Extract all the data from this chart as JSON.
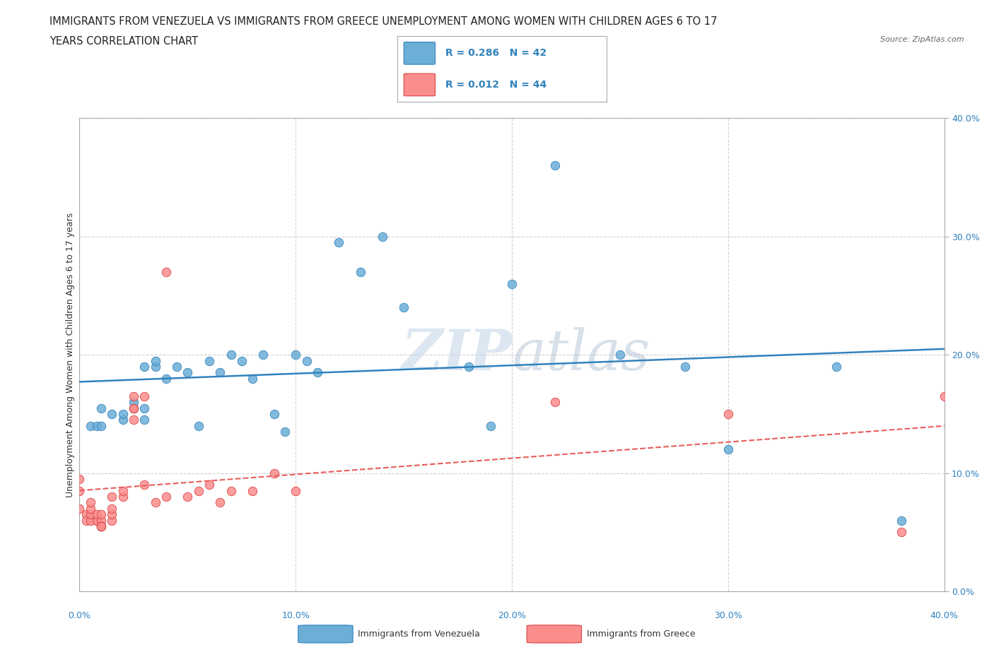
{
  "title_line1": "IMMIGRANTS FROM VENEZUELA VS IMMIGRANTS FROM GREECE UNEMPLOYMENT AMONG WOMEN WITH CHILDREN AGES 6 TO 17",
  "title_line2": "YEARS CORRELATION CHART",
  "source": "Source: ZipAtlas.com",
  "ylabel_label": "Unemployment Among Women with Children Ages 6 to 17 years",
  "watermark_zip": "ZIP",
  "watermark_atlas": "atlas",
  "legend_entry1": "R = 0.286   N = 42",
  "legend_entry2": "R = 0.012   N = 44",
  "legend_label1": "Immigrants from Venezuela",
  "legend_label2": "Immigrants from Greece",
  "color_venezuela": "#6baed6",
  "color_greece": "#fc8d8d",
  "color_trend_venezuela": "#3182bd",
  "color_trend_greece": "#e85c5c",
  "venezuela_x": [
    0.005,
    0.008,
    0.01,
    0.01,
    0.015,
    0.02,
    0.02,
    0.025,
    0.025,
    0.03,
    0.03,
    0.03,
    0.035,
    0.035,
    0.04,
    0.045,
    0.05,
    0.055,
    0.06,
    0.065,
    0.07,
    0.075,
    0.08,
    0.085,
    0.09,
    0.095,
    0.1,
    0.105,
    0.11,
    0.12,
    0.13,
    0.14,
    0.15,
    0.18,
    0.19,
    0.2,
    0.22,
    0.25,
    0.28,
    0.3,
    0.35,
    0.38
  ],
  "venezuela_y": [
    0.14,
    0.14,
    0.14,
    0.155,
    0.15,
    0.145,
    0.15,
    0.155,
    0.16,
    0.145,
    0.155,
    0.19,
    0.19,
    0.195,
    0.18,
    0.19,
    0.185,
    0.14,
    0.195,
    0.185,
    0.2,
    0.195,
    0.18,
    0.2,
    0.15,
    0.135,
    0.2,
    0.195,
    0.185,
    0.295,
    0.27,
    0.3,
    0.24,
    0.19,
    0.14,
    0.26,
    0.36,
    0.2,
    0.19,
    0.12,
    0.19,
    0.06
  ],
  "greece_x": [
    0.0,
    0.0,
    0.0,
    0.003,
    0.003,
    0.005,
    0.005,
    0.005,
    0.005,
    0.008,
    0.008,
    0.008,
    0.01,
    0.01,
    0.01,
    0.01,
    0.01,
    0.015,
    0.015,
    0.015,
    0.015,
    0.02,
    0.02,
    0.025,
    0.025,
    0.025,
    0.025,
    0.03,
    0.03,
    0.035,
    0.04,
    0.04,
    0.05,
    0.055,
    0.06,
    0.065,
    0.07,
    0.08,
    0.09,
    0.1,
    0.22,
    0.3,
    0.38,
    0.4
  ],
  "greece_y": [
    0.095,
    0.085,
    0.07,
    0.065,
    0.06,
    0.06,
    0.065,
    0.07,
    0.075,
    0.06,
    0.06,
    0.065,
    0.06,
    0.055,
    0.055,
    0.055,
    0.065,
    0.06,
    0.065,
    0.07,
    0.08,
    0.08,
    0.085,
    0.145,
    0.155,
    0.155,
    0.165,
    0.09,
    0.165,
    0.075,
    0.08,
    0.27,
    0.08,
    0.085,
    0.09,
    0.075,
    0.085,
    0.085,
    0.1,
    0.085,
    0.16,
    0.15,
    0.05,
    0.165
  ],
  "xlim": [
    0.0,
    0.4
  ],
  "ylim": [
    0.0,
    0.4
  ],
  "xticks": [
    0.0,
    0.1,
    0.2,
    0.3,
    0.4
  ],
  "yticks_right": [
    0.0,
    0.1,
    0.2,
    0.3,
    0.4
  ],
  "grid_color": "#d0d0d0",
  "background_color": "#ffffff"
}
